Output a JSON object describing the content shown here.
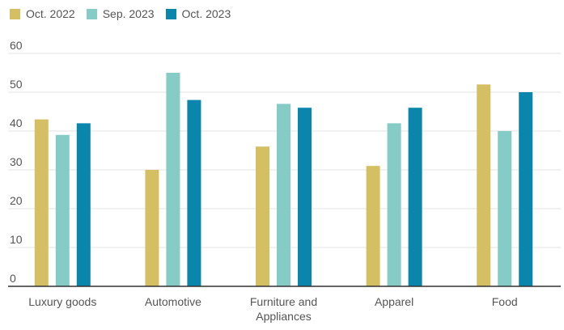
{
  "chart_data": {
    "type": "bar",
    "title": "",
    "xlabel": "",
    "ylabel": "",
    "categories": [
      "Luxury goods",
      "Automotive",
      "Furniture and Appliances",
      "Apparel",
      "Food"
    ],
    "category_lines": [
      [
        "Luxury goods"
      ],
      [
        "Automotive"
      ],
      [
        "Furniture and",
        "Appliances"
      ],
      [
        "Apparel"
      ],
      [
        "Food"
      ]
    ],
    "series": [
      {
        "name": "Oct. 2022",
        "color": "#d4c062",
        "values": [
          43,
          30,
          36,
          31,
          52
        ]
      },
      {
        "name": "Sep. 2023",
        "color": "#86ccc6",
        "values": [
          39,
          55,
          47,
          42,
          40
        ]
      },
      {
        "name": "Oct. 2023",
        "color": "#0a86ad",
        "values": [
          42,
          48,
          46,
          46,
          50
        ]
      }
    ],
    "ylim": [
      0,
      60
    ],
    "yticks": [
      0,
      10,
      20,
      30,
      40,
      50,
      60
    ],
    "grid": true,
    "legend_position": "top-left"
  }
}
